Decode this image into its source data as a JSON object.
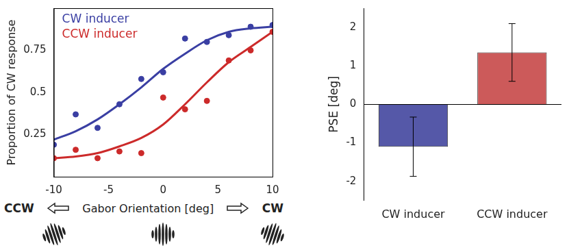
{
  "chart_data": [
    {
      "type": "scatter",
      "ylabel": "Proportion of CW response",
      "xlabel": "Gabor Orientation [deg]",
      "x_direction_labels": [
        "CCW",
        "CW"
      ],
      "x": [
        -10,
        -8,
        -6,
        -4,
        -2,
        0,
        2,
        4,
        6,
        8,
        10
      ],
      "xlim": [
        -10,
        10
      ],
      "xticks": [
        -10,
        -5,
        0,
        5,
        10
      ],
      "ylim": [
        0,
        1
      ],
      "yticks": [
        0.25,
        0.5,
        0.75
      ],
      "grid": false,
      "legend": "top-left",
      "series": [
        {
          "name": "CW inducer",
          "color": "#3a3fa3",
          "marker": "circle",
          "line_style": "solid",
          "values": [
            0.19,
            0.37,
            0.29,
            0.43,
            0.58,
            0.62,
            0.82,
            0.8,
            0.84,
            0.89,
            0.9
          ],
          "fit": [
            0.22,
            0.27,
            0.34,
            0.43,
            0.53,
            0.64,
            0.73,
            0.81,
            0.86,
            0.88,
            0.89
          ]
        },
        {
          "name": "CCW inducer",
          "color": "#cc2a2a",
          "marker": "circle",
          "line_style": "solid",
          "values": [
            0.11,
            0.16,
            0.11,
            0.15,
            0.14,
            0.47,
            0.4,
            0.45,
            0.69,
            0.75,
            0.86
          ],
          "fit": [
            0.11,
            0.12,
            0.14,
            0.18,
            0.23,
            0.31,
            0.43,
            0.56,
            0.68,
            0.77,
            0.86
          ]
        }
      ]
    },
    {
      "type": "bar",
      "ylabel": "PSE [deg]",
      "categories": [
        "CW inducer",
        "CCW inducer"
      ],
      "values": [
        -1.1,
        1.35
      ],
      "errors": [
        0.77,
        0.75
      ],
      "colors": [
        "#5558a8",
        "#cc5a5a"
      ],
      "ylim": [
        -2.5,
        2.5
      ],
      "yticks": [
        -2,
        -1,
        0,
        1,
        2
      ],
      "grid": false
    }
  ]
}
